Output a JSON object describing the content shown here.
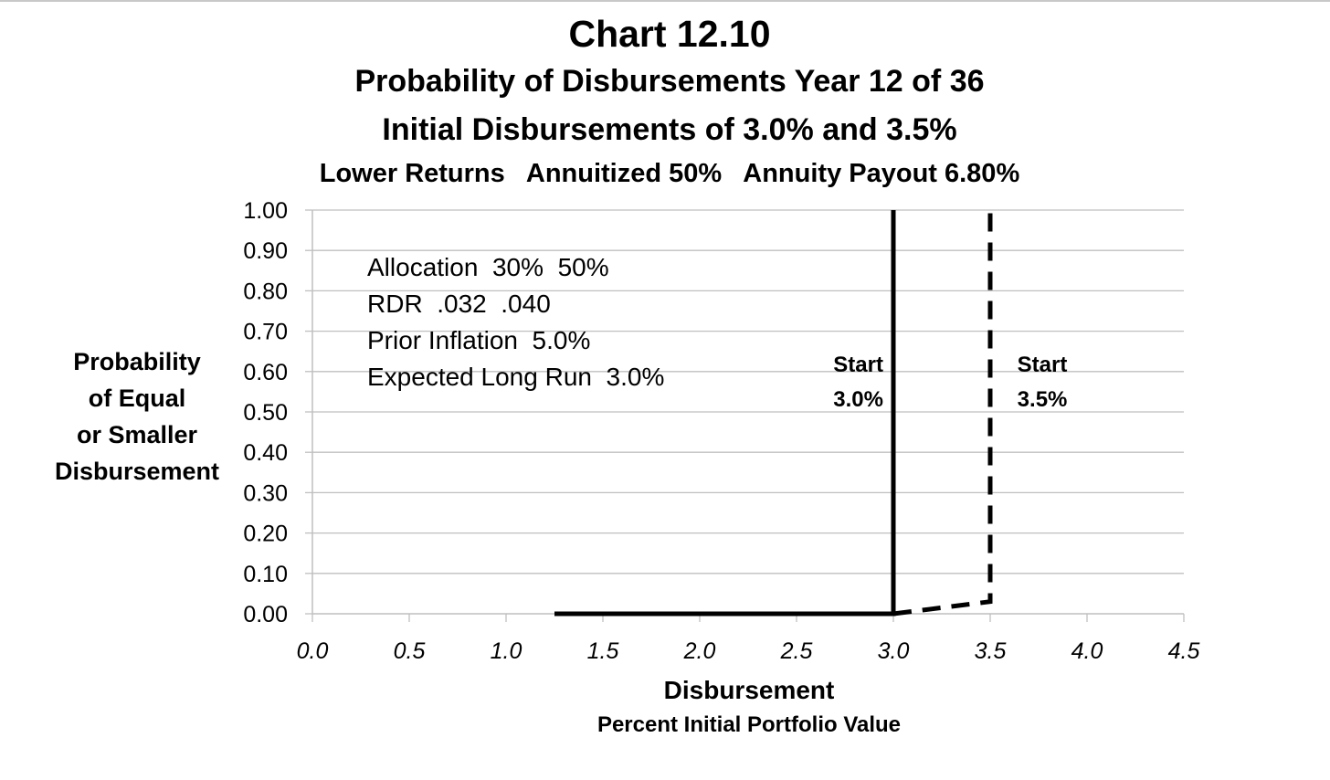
{
  "chart_data": {
    "type": "line",
    "title": "Chart 12.10",
    "subtitles": [
      "Probability of Disbursements Year 12 of 36",
      "Initial Disbursements of 3.0% and 3.5%",
      "Lower Returns   Annuitized 50%   Annuity Payout 6.80%"
    ],
    "xlabel": "Disbursement",
    "xlabel_sub": "Percent Initial Portfolio Value",
    "ylabel_lines": [
      "Probability",
      "of Equal",
      "or Smaller",
      "Disbursement"
    ],
    "xlim": [
      0,
      4.5
    ],
    "ylim": [
      0,
      1
    ],
    "x_ticks": [
      "0.0",
      "0.5",
      "1.0",
      "1.5",
      "2.0",
      "2.5",
      "3.0",
      "3.5",
      "4.0",
      "4.5"
    ],
    "y_ticks": [
      "0.00",
      "0.10",
      "0.20",
      "0.30",
      "0.40",
      "0.50",
      "0.60",
      "0.70",
      "0.80",
      "0.90",
      "1.00"
    ],
    "grid": true,
    "series": [
      {
        "style": "solid",
        "color": "#000000",
        "points": [
          [
            1.25,
            0.0
          ],
          [
            3.0,
            0.0
          ],
          [
            3.0,
            1.0
          ]
        ]
      },
      {
        "style": "dashed",
        "color": "#000000",
        "points": [
          [
            3.0,
            0.0
          ],
          [
            3.5,
            0.03
          ],
          [
            3.5,
            1.0
          ]
        ]
      }
    ],
    "annotations": {
      "notes": [
        "Allocation  30%  50%",
        "RDR  .032  .040",
        "Prior Inflation  5.0%",
        "Expected Long Run  3.0%"
      ],
      "labels": [
        {
          "lines": [
            "Start",
            "3.0%"
          ],
          "x": 2.69,
          "y": 0.6
        },
        {
          "lines": [
            "Start",
            "3.5%"
          ],
          "x": 3.64,
          "y": 0.6
        }
      ]
    }
  }
}
